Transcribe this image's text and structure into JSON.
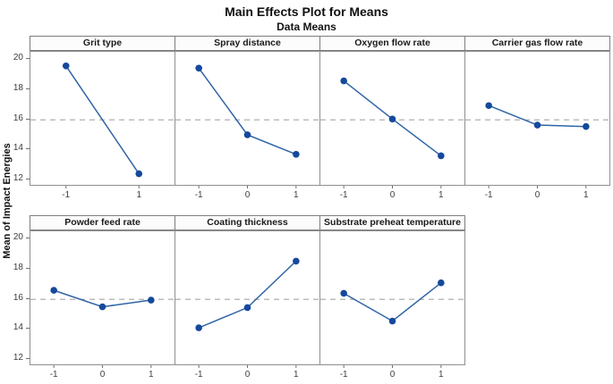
{
  "title": "Main Effects Plot for Means",
  "subtitle": "Data Means",
  "ylabel": "Mean of Impact Energies",
  "colors": {
    "line": "#2f64a7",
    "marker": "#15499c",
    "reference_line": "#a6a6a6",
    "frame": "#8f8f8f",
    "tick": "#6e6e6e",
    "header_border": "#7e7e7e",
    "header_bg": "#fcfcfc"
  },
  "chart_data": {
    "type": "line",
    "title": "Main Effects Plot for Means",
    "subtitle": "Data Means",
    "ylabel": "Mean of Impact Energies",
    "ylim": [
      11.5,
      20.5
    ],
    "yticks": [
      20,
      18,
      16,
      14,
      12
    ],
    "reference_line": 15.9,
    "grid": false,
    "legend": false,
    "panels": [
      {
        "title": "Grit type",
        "x": [
          -1,
          1
        ],
        "values": [
          19.5,
          12.3
        ]
      },
      {
        "title": "Spray distance",
        "x": [
          -1,
          0,
          1
        ],
        "values": [
          19.35,
          14.9,
          13.6
        ]
      },
      {
        "title": "Oxygen flow rate",
        "x": [
          -1,
          0,
          1
        ],
        "values": [
          18.5,
          15.95,
          13.5
        ]
      },
      {
        "title": "Carrier gas flow rate",
        "x": [
          -1,
          0,
          1
        ],
        "values": [
          16.85,
          15.55,
          15.45
        ]
      },
      {
        "title": "Powder feed rate",
        "x": [
          -1,
          0,
          1
        ],
        "values": [
          16.5,
          15.4,
          15.85
        ]
      },
      {
        "title": "Coating thickness",
        "x": [
          -1,
          0,
          1
        ],
        "values": [
          14.0,
          15.35,
          18.45
        ]
      },
      {
        "title": "Substrate preheat temperature",
        "x": [
          -1,
          0,
          1
        ],
        "values": [
          16.3,
          14.45,
          17.0
        ]
      }
    ],
    "rows": [
      [
        0,
        1,
        2,
        3
      ],
      [
        4,
        5,
        6
      ]
    ]
  }
}
